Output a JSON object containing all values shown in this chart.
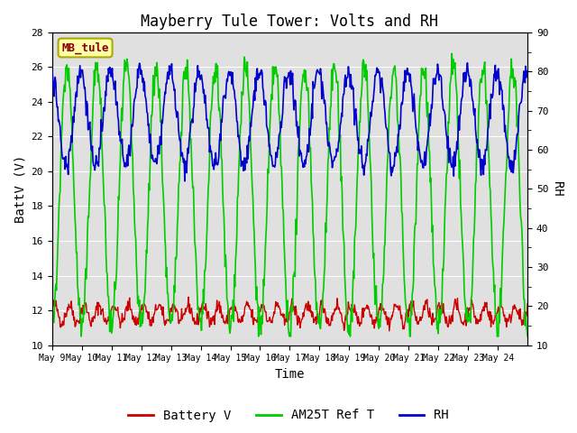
{
  "title": "Mayberry Tule Tower: Volts and RH",
  "xlabel": "Time",
  "ylabel_left": "BattV (V)",
  "ylabel_right": "RH",
  "ylim_left": [
    10,
    28
  ],
  "ylim_right": [
    10,
    90
  ],
  "yticks_left": [
    10,
    12,
    14,
    16,
    18,
    20,
    22,
    24,
    26,
    28
  ],
  "yticks_right": [
    10,
    20,
    30,
    40,
    50,
    60,
    70,
    80,
    90
  ],
  "xtick_labels": [
    "May 9",
    "May 10",
    "May 11",
    "May 12",
    "May 13",
    "May 14",
    "May 15",
    "May 16",
    "May 17",
    "May 18",
    "May 19",
    "May 20",
    "May 21",
    "May 22",
    "May 23",
    "May 24"
  ],
  "n_days": 16,
  "points_per_day": 48,
  "bg_color": "#e0e0e0",
  "grid_color": "#ffffff",
  "battery_color": "#cc0000",
  "am25t_color": "#00cc00",
  "rh_color": "#0000cc",
  "legend_labels": [
    "Battery V",
    "AM25T Ref T",
    "RH"
  ],
  "station_label": "MB_tule",
  "station_box_facecolor": "#ffffaa",
  "station_box_edgecolor": "#aaaa00",
  "station_text_color": "#880000",
  "title_fontsize": 12,
  "axis_label_fontsize": 10,
  "tick_fontsize": 8,
  "legend_fontsize": 10
}
